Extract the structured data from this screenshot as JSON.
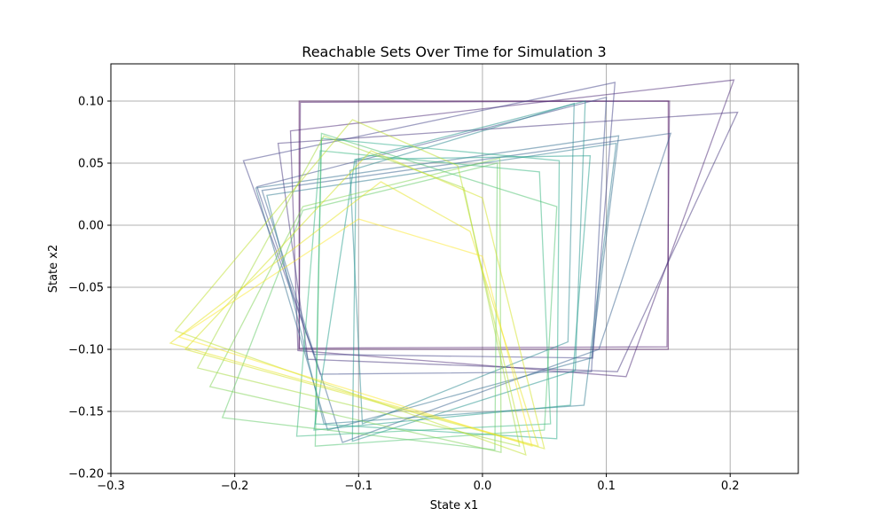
{
  "chart_data": {
    "type": "line",
    "title": "Reachable Sets Over Time for Simulation 3",
    "xlabel": "State x1",
    "ylabel": "State x2",
    "xlim": [
      -0.3,
      0.255
    ],
    "ylim": [
      -0.2,
      0.13
    ],
    "xticks": [
      -0.3,
      -0.2,
      -0.1,
      0.0,
      0.1,
      0.2
    ],
    "xtick_labels": [
      "−0.3",
      "−0.2",
      "−0.1",
      "0.0",
      "0.1",
      "0.2"
    ],
    "yticks": [
      -0.2,
      -0.15,
      -0.1,
      -0.05,
      0.0,
      0.05,
      0.1
    ],
    "ytick_labels": [
      "−0.20",
      "−0.15",
      "−0.10",
      "−0.05",
      "0.00",
      "0.05",
      "0.10"
    ],
    "grid": true,
    "colormap": "viridis",
    "alpha": 0.5,
    "polygons": [
      {
        "color": "#440154",
        "points": [
          [
            -0.148,
            0.1
          ],
          [
            0.15,
            0.1
          ],
          [
            0.15,
            -0.1
          ],
          [
            -0.148,
            -0.1
          ]
        ]
      },
      {
        "color": "#471365",
        "points": [
          [
            -0.147,
            0.099
          ],
          [
            0.151,
            0.1
          ],
          [
            0.149,
            -0.098
          ],
          [
            -0.148,
            -0.099
          ]
        ]
      },
      {
        "color": "#482374",
        "points": [
          [
            -0.155,
            0.076
          ],
          [
            0.203,
            0.117
          ],
          [
            0.116,
            -0.122
          ],
          [
            -0.149,
            -0.101
          ]
        ]
      },
      {
        "color": "#44337b",
        "points": [
          [
            -0.165,
            0.066
          ],
          [
            0.206,
            0.091
          ],
          [
            0.109,
            -0.118
          ],
          [
            -0.141,
            -0.108
          ]
        ]
      },
      {
        "color": "#414287",
        "points": [
          [
            -0.193,
            0.052
          ],
          [
            0.107,
            0.115
          ],
          [
            0.089,
            -0.107
          ],
          [
            -0.136,
            -0.104
          ]
        ]
      },
      {
        "color": "#3e4c8a",
        "points": [
          [
            -0.182,
            0.031
          ],
          [
            0.1,
            0.103
          ],
          [
            0.088,
            -0.118
          ],
          [
            -0.131,
            -0.12
          ]
        ]
      },
      {
        "color": "#355f8d",
        "points": [
          [
            -0.178,
            0.028
          ],
          [
            0.152,
            0.074
          ],
          [
            0.094,
            -0.1
          ],
          [
            -0.113,
            -0.175
          ]
        ]
      },
      {
        "color": "#2f6c8e",
        "points": [
          [
            -0.183,
            0.03
          ],
          [
            0.11,
            0.072
          ],
          [
            0.088,
            -0.107
          ],
          [
            -0.125,
            -0.165
          ]
        ]
      },
      {
        "color": "#2a788e",
        "points": [
          [
            -0.174,
            0.024
          ],
          [
            0.108,
            0.066
          ],
          [
            0.082,
            -0.145
          ],
          [
            -0.128,
            -0.16
          ]
        ]
      },
      {
        "color": "#25858e",
        "points": [
          [
            -0.107,
            0.044
          ],
          [
            0.074,
            0.098
          ],
          [
            0.069,
            -0.094
          ],
          [
            -0.097,
            -0.16
          ]
        ]
      },
      {
        "color": "#1f928c",
        "points": [
          [
            -0.102,
            0.053
          ],
          [
            0.083,
            0.1
          ],
          [
            0.075,
            -0.117
          ],
          [
            -0.105,
            -0.174
          ]
        ]
      },
      {
        "color": "#1e9c89",
        "points": [
          [
            -0.103,
            0.053
          ],
          [
            0.087,
            0.056
          ],
          [
            0.071,
            -0.145
          ],
          [
            -0.136,
            -0.165
          ]
        ]
      },
      {
        "color": "#22a785",
        "points": [
          [
            -0.13,
            0.07
          ],
          [
            0.062,
            0.052
          ],
          [
            0.06,
            -0.172
          ],
          [
            -0.135,
            -0.16
          ]
        ]
      },
      {
        "color": "#2fb47c",
        "points": [
          [
            -0.131,
            0.06
          ],
          [
            0.046,
            0.043
          ],
          [
            0.055,
            -0.16
          ],
          [
            -0.15,
            -0.17
          ]
        ]
      },
      {
        "color": "#4ac16d",
        "points": [
          [
            -0.13,
            0.074
          ],
          [
            0.06,
            0.015
          ],
          [
            0.05,
            -0.165
          ],
          [
            -0.135,
            -0.178
          ]
        ]
      },
      {
        "color": "#5ec962",
        "points": [
          [
            -0.145,
            0.012
          ],
          [
            0.012,
            0.05
          ],
          [
            0.01,
            -0.181
          ],
          [
            -0.21,
            -0.155
          ]
        ]
      },
      {
        "color": "#7cd250",
        "points": [
          [
            -0.145,
            0.015
          ],
          [
            0.014,
            0.054
          ],
          [
            0.015,
            -0.183
          ],
          [
            -0.22,
            -0.13
          ]
        ]
      },
      {
        "color": "#a2da37",
        "points": [
          [
            -0.128,
            0.072
          ],
          [
            -0.015,
            0.03
          ],
          [
            0.03,
            -0.178
          ],
          [
            -0.23,
            -0.115
          ]
        ]
      },
      {
        "color": "#bddf26",
        "points": [
          [
            -0.105,
            0.085
          ],
          [
            -0.02,
            0.048
          ],
          [
            0.035,
            -0.185
          ],
          [
            -0.248,
            -0.085
          ]
        ]
      },
      {
        "color": "#d2e21b",
        "points": [
          [
            -0.09,
            0.06
          ],
          [
            0.0,
            0.022
          ],
          [
            0.05,
            -0.18
          ],
          [
            -0.24,
            -0.1
          ]
        ]
      },
      {
        "color": "#e5e419",
        "points": [
          [
            -0.082,
            0.035
          ],
          [
            -0.01,
            -0.005
          ],
          [
            0.045,
            -0.178
          ],
          [
            -0.252,
            -0.095
          ]
        ]
      },
      {
        "color": "#fde725",
        "points": [
          [
            -0.1,
            0.005
          ],
          [
            0.0,
            -0.025
          ],
          [
            0.04,
            -0.178
          ],
          [
            -0.245,
            -0.09
          ]
        ]
      }
    ]
  }
}
